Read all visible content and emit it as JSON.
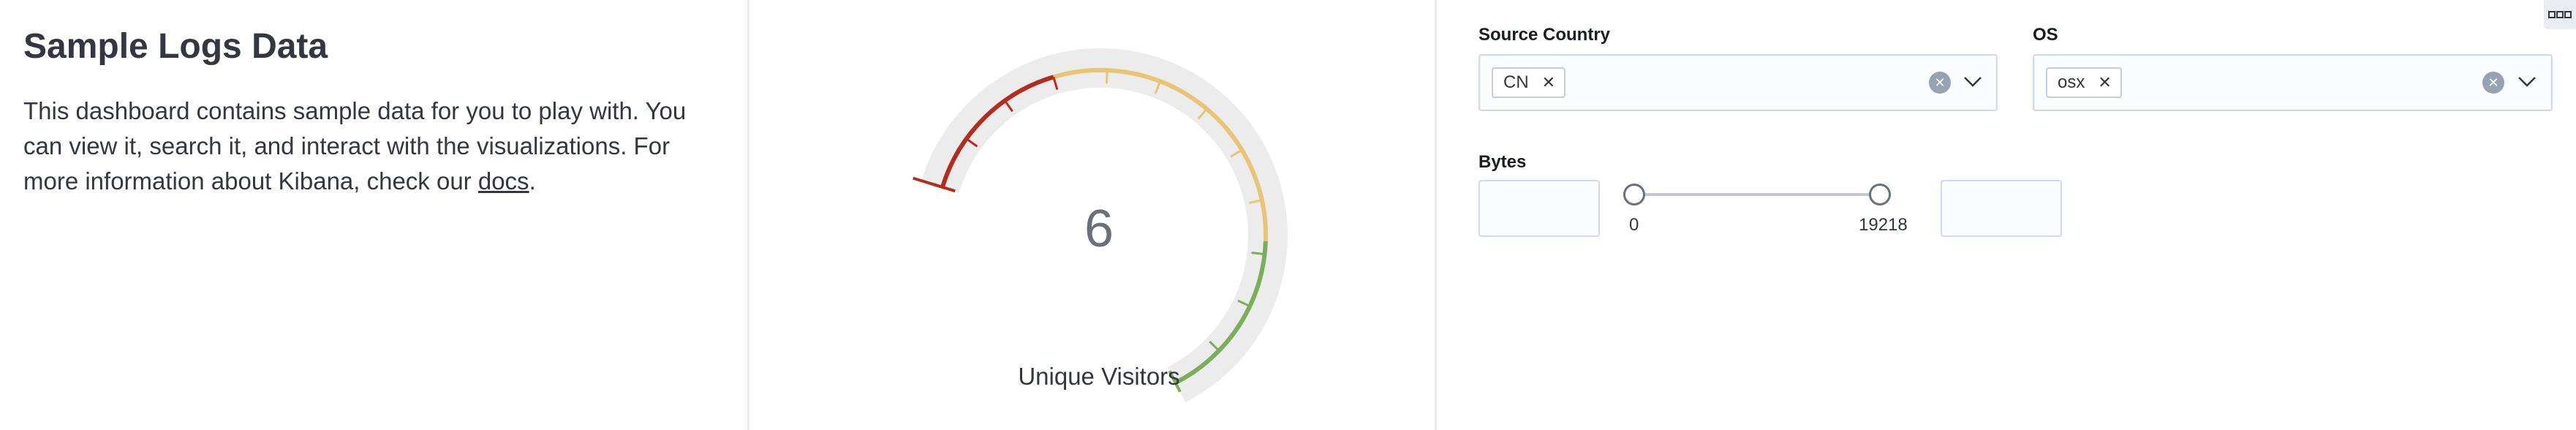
{
  "markdown_panel": {
    "title": "Sample Logs Data",
    "text_before_link": "This dashboard contains sample data for you to play with. You can view it, search it, and interact with the visualizations. For more information about Kibana, check our ",
    "link_text": "docs",
    "text_after_link": "."
  },
  "gauge_panel": {
    "value": "6",
    "label": "Unique Visitors",
    "colors": {
      "low": "#b52c1f",
      "mid": "#e9c474",
      "high": "#7aae5b",
      "background": "#ececec"
    }
  },
  "controls_panel": {
    "source_country": {
      "label": "Source Country",
      "selected": "CN"
    },
    "os": {
      "label": "OS",
      "selected": "osx"
    },
    "bytes": {
      "label": "Bytes",
      "min_value": "",
      "max_value": "",
      "range_min": "0",
      "range_max": "19218"
    }
  },
  "icons": {
    "menu": "panel-menu-icon",
    "clear": "clear-icon",
    "dropdown": "chevron-down-icon",
    "remove": "close-icon"
  }
}
